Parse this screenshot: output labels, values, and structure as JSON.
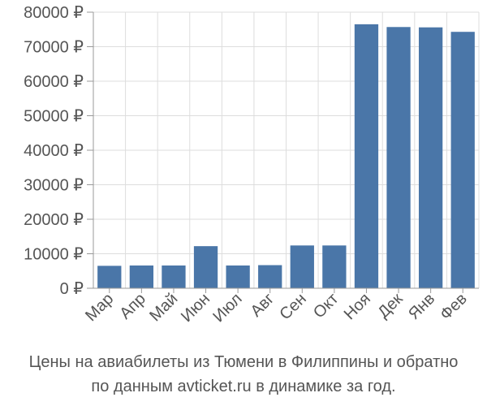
{
  "chart_data": {
    "type": "bar",
    "title": "",
    "xlabel": "",
    "ylabel": "",
    "categories": [
      "Мар",
      "Апр",
      "Май",
      "Июн",
      "Июл",
      "Авг",
      "Сен",
      "Окт",
      "Ноя",
      "Дек",
      "Янв",
      "Фев"
    ],
    "values": [
      6500,
      6600,
      6600,
      12200,
      6600,
      6700,
      12400,
      12400,
      76500,
      75700,
      75600,
      74300
    ],
    "ylim": [
      0,
      80000
    ],
    "yticks": [
      0,
      10000,
      20000,
      30000,
      40000,
      50000,
      60000,
      70000,
      80000
    ],
    "ytick_labels": [
      "0 ₽",
      "10000 ₽",
      "20000 ₽",
      "30000 ₽",
      "40000 ₽",
      "50000 ₽",
      "60000 ₽",
      "70000 ₽",
      "80000 ₽"
    ],
    "grid": true,
    "bar_color": "#4a76a8"
  },
  "caption": {
    "line1": "Цены на авиабилеты из Тюмени в Филиппины и обратно",
    "line2": "по данным avticket.ru в динамике за год."
  }
}
